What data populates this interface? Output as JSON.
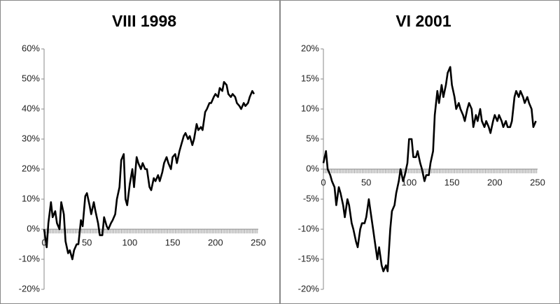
{
  "chart_data": [
    {
      "type": "line",
      "title": "VIII 1998",
      "color": "#000000",
      "x": [
        0,
        3,
        5,
        8,
        10,
        13,
        15,
        18,
        20,
        23,
        25,
        28,
        30,
        33,
        35,
        38,
        40,
        43,
        45,
        48,
        50,
        53,
        55,
        58,
        60,
        63,
        65,
        68,
        70,
        73,
        75,
        78,
        80,
        83,
        85,
        88,
        90,
        93,
        95,
        97,
        100,
        103,
        105,
        108,
        110,
        113,
        115,
        118,
        120,
        123,
        125,
        128,
        130,
        133,
        135,
        138,
        140,
        143,
        145,
        148,
        150,
        153,
        155,
        158,
        160,
        163,
        165,
        168,
        170,
        173,
        175,
        178,
        180,
        183,
        185,
        188,
        190,
        193,
        195,
        198,
        200,
        203,
        205,
        208,
        210,
        213,
        215,
        218,
        220,
        223,
        225,
        228,
        230,
        233,
        235,
        238,
        240,
        243,
        245
      ],
      "values": [
        0,
        -6,
        2,
        9,
        4,
        6,
        2,
        0,
        9,
        5,
        -4,
        -8,
        -7,
        -10,
        -7,
        -5,
        -5,
        3,
        1,
        11,
        12,
        8,
        5,
        9,
        6,
        2,
        -2,
        -2,
        4,
        1,
        0,
        2,
        3,
        5,
        10,
        14,
        23,
        25,
        10,
        8,
        15,
        20,
        14,
        24,
        22,
        20,
        22,
        20,
        20,
        14,
        13,
        17,
        16,
        18,
        16,
        19,
        22,
        24,
        22,
        20,
        24,
        25,
        22,
        26,
        28,
        31,
        32,
        30,
        31,
        28,
        30,
        35,
        33,
        34,
        33,
        39,
        40,
        42,
        42,
        44,
        45,
        44,
        47,
        46,
        49,
        48,
        45,
        44,
        45,
        44,
        42,
        41,
        40,
        42,
        41,
        42,
        44,
        46,
        45
      ],
      "xlim": [
        0,
        250
      ],
      "xticks": [
        0,
        50,
        100,
        150,
        200,
        250
      ],
      "ylim": [
        -20,
        60
      ],
      "yticks": [
        {
          "value": -20,
          "label": "-20%"
        },
        {
          "value": -10,
          "label": "-10%"
        },
        {
          "value": 0,
          "label": "0%"
        },
        {
          "value": 10,
          "label": "10%"
        },
        {
          "value": 20,
          "label": "20%"
        },
        {
          "value": 30,
          "label": "30%"
        },
        {
          "value": 40,
          "label": "40%"
        },
        {
          "value": 50,
          "label": "50%"
        },
        {
          "value": 60,
          "label": "60%"
        }
      ]
    },
    {
      "type": "line",
      "title": "VI 2001",
      "color": "#000000",
      "x": [
        0,
        3,
        5,
        8,
        10,
        13,
        15,
        18,
        20,
        23,
        25,
        28,
        30,
        33,
        35,
        38,
        40,
        43,
        45,
        48,
        50,
        53,
        55,
        58,
        60,
        63,
        65,
        68,
        70,
        73,
        75,
        78,
        80,
        83,
        85,
        88,
        90,
        93,
        95,
        98,
        100,
        103,
        105,
        108,
        110,
        113,
        115,
        118,
        120,
        123,
        125,
        128,
        130,
        133,
        135,
        138,
        140,
        143,
        145,
        148,
        150,
        153,
        155,
        158,
        160,
        163,
        165,
        168,
        170,
        173,
        175,
        178,
        180,
        183,
        185,
        188,
        190,
        193,
        195,
        198,
        200,
        203,
        205,
        208,
        210,
        213,
        215,
        218,
        220,
        223,
        225,
        228,
        230,
        233,
        235,
        238,
        240,
        243,
        245,
        248
      ],
      "values": [
        1,
        3,
        0,
        -1,
        -2,
        -3,
        -6,
        -3,
        -4,
        -6,
        -8,
        -5,
        -6,
        -9,
        -10,
        -12,
        -13,
        -10,
        -9,
        -9,
        -8,
        -5,
        -7,
        -10,
        -12,
        -15,
        -13,
        -16,
        -17,
        -16,
        -17,
        -10,
        -7,
        -6,
        -4,
        -2,
        0,
        -2,
        -1,
        1,
        5,
        5,
        2,
        2,
        3,
        1,
        0,
        -2,
        -1,
        -1,
        1,
        3,
        9,
        13,
        11,
        14,
        12,
        14,
        16,
        17,
        14,
        12,
        10,
        11,
        10,
        9,
        8,
        10,
        11,
        10,
        7,
        9,
        8,
        10,
        8,
        7,
        8,
        7,
        6,
        8,
        9,
        8,
        9,
        8,
        7,
        8,
        7,
        7,
        8,
        12,
        13,
        12,
        13,
        12,
        11,
        12,
        11,
        10,
        7,
        8
      ],
      "xlim": [
        0,
        250
      ],
      "xticks": [
        0,
        50,
        100,
        150,
        200,
        250
      ],
      "ylim": [
        -20,
        20
      ],
      "yticks": [
        {
          "value": -20,
          "label": "-20%"
        },
        {
          "value": -15,
          "label": "-15%"
        },
        {
          "value": -10,
          "label": "-10%"
        },
        {
          "value": -5,
          "label": "-5%"
        },
        {
          "value": 0,
          "label": "0%"
        },
        {
          "value": 5,
          "label": "5%"
        },
        {
          "value": 10,
          "label": "10%"
        },
        {
          "value": 15,
          "label": "15%"
        },
        {
          "value": 20,
          "label": "20%"
        }
      ]
    }
  ]
}
